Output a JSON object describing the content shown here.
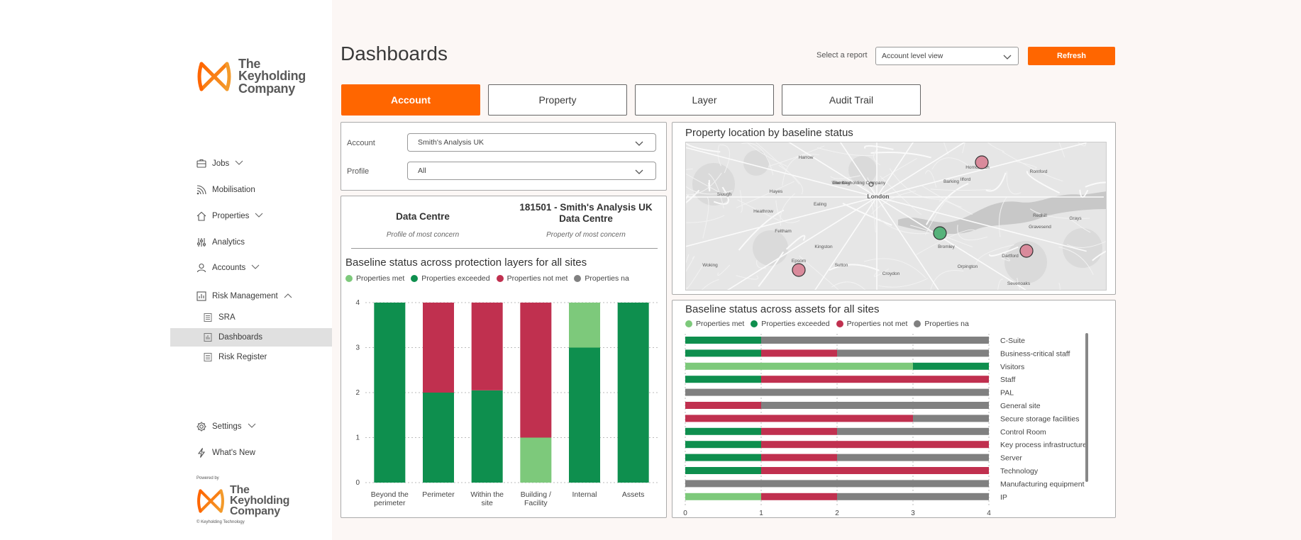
{
  "brand": {
    "name_line1": "The",
    "name_line2": "Keyholding",
    "name_line3": "Company",
    "powered_by": "Powered by",
    "copyright": "© Keyholding Technology",
    "accent": "#ff6600"
  },
  "sidebar": {
    "items": [
      {
        "label": "Jobs",
        "icon": "briefcase-icon",
        "chevron": true
      },
      {
        "label": "Mobilisation",
        "icon": "signal-icon",
        "chevron": false
      },
      {
        "label": "Properties",
        "icon": "home-icon",
        "chevron": true
      },
      {
        "label": "Analytics",
        "icon": "sliders-icon",
        "chevron": false
      },
      {
        "label": "Accounts",
        "icon": "user-icon",
        "chevron": true
      },
      {
        "label": "Risk Management",
        "icon": "chart-icon",
        "chevron": true
      }
    ],
    "sub_items": [
      {
        "label": "SRA",
        "active": false
      },
      {
        "label": "Dashboards",
        "active": true
      },
      {
        "label": "Risk Register",
        "active": false
      }
    ],
    "bottom_items": [
      {
        "label": "Settings",
        "icon": "gear-icon",
        "chevron": true
      },
      {
        "label": "What's New",
        "icon": "bolt-icon",
        "chevron": false
      }
    ]
  },
  "header": {
    "title": "Dashboards",
    "report_label": "Select a report",
    "report_value": "Account level view",
    "refresh_label": "Refresh"
  },
  "tabs": [
    {
      "label": "Account",
      "active": true
    },
    {
      "label": "Property",
      "active": false
    },
    {
      "label": "Layer",
      "active": false
    },
    {
      "label": "Audit Trail",
      "active": false
    }
  ],
  "filters": {
    "account_label": "Account",
    "account_value": "Smith's Analysis UK",
    "profile_label": "Profile",
    "profile_value": "All"
  },
  "summary": {
    "profile_title": "Data Centre",
    "profile_sub": "Profile of most concern",
    "property_title_line1": "181501 - Smith's Analysis UK",
    "property_title_line2": "Data Centre",
    "property_sub": "Property of most concern"
  },
  "legend": [
    {
      "label": "Properties met",
      "color": "#7dc97b"
    },
    {
      "label": "Properties exceeded",
      "color": "#0e8f4e"
    },
    {
      "label": "Properties not met",
      "color": "#c0304f"
    },
    {
      "label": "Properties na",
      "color": "#808080"
    }
  ],
  "map": {
    "title": "Property location by baseline status",
    "places": [
      "Harrow",
      "Wembley",
      "Slough",
      "London",
      "Hayes",
      "Feltham",
      "Kingston",
      "Croydon",
      "Bromley",
      "Dartford",
      "Orpington",
      "Sevenoaks",
      "Romford",
      "Ilford",
      "Barking",
      "Gravesend",
      "Redhill",
      "Hornchurch",
      "Grays",
      "The Keyholding Company",
      "Ealing",
      "Heathrow",
      "Sutton",
      "Epsom",
      "Woking"
    ],
    "markers": [
      {
        "status": "Properties not met",
        "color": "#d98a9b"
      },
      {
        "status": "Properties exceeded",
        "color": "#56b27a"
      },
      {
        "status": "Properties not met",
        "color": "#d98a9b"
      },
      {
        "status": "Properties not met",
        "color": "#d98a9b"
      }
    ]
  },
  "chart_data": [
    {
      "type": "bar",
      "stacked": true,
      "orientation": "vertical",
      "title": "Baseline status across protection layers for all sites",
      "categories": [
        "Beyond the perimeter",
        "Perimeter",
        "Within the site",
        "Building / Facility",
        "Internal",
        "Assets"
      ],
      "series": [
        {
          "name": "Properties met",
          "color": "#7dc97b",
          "values": [
            0,
            0,
            0,
            1,
            1,
            0
          ]
        },
        {
          "name": "Properties exceeded",
          "color": "#0e8f4e",
          "values": [
            4,
            2,
            2.05,
            0,
            3,
            4
          ]
        },
        {
          "name": "Properties not met",
          "color": "#c0304f",
          "values": [
            0,
            2,
            1.95,
            3,
            0,
            0
          ]
        },
        {
          "name": "Properties na",
          "color": "#808080",
          "values": [
            0,
            0,
            0,
            0,
            0,
            0
          ]
        }
      ],
      "ylim": [
        0,
        4
      ],
      "yticks": [
        0,
        1,
        2,
        3,
        4
      ],
      "grid": true,
      "legend": "top-left"
    },
    {
      "type": "bar",
      "stacked": true,
      "orientation": "horizontal",
      "title": "Baseline status across assets for all sites",
      "categories": [
        "C-Suite",
        "Business-critical staff",
        "Visitors",
        "Staff",
        "PAL",
        "General site",
        "Secure storage facilities",
        "Control Room",
        "Key process infrastructure",
        "Server",
        "Technology",
        "Manufacturing equipment",
        "IP"
      ],
      "series": [
        {
          "name": "Properties met",
          "color": "#7dc97b",
          "values": [
            0,
            0,
            3,
            0,
            0,
            0,
            0,
            0,
            0,
            0,
            0,
            0,
            1
          ]
        },
        {
          "name": "Properties exceeded",
          "color": "#0e8f4e",
          "values": [
            1,
            1,
            1,
            1,
            0,
            0,
            0,
            1,
            1,
            1,
            1,
            0,
            0
          ]
        },
        {
          "name": "Properties not met",
          "color": "#c0304f",
          "values": [
            0,
            1,
            0,
            3,
            0,
            1,
            3,
            1,
            3,
            1,
            3,
            0,
            1
          ]
        },
        {
          "name": "Properties na",
          "color": "#808080",
          "values": [
            3,
            2,
            0,
            0,
            4,
            3,
            1,
            2,
            0,
            2,
            0,
            4,
            2
          ]
        }
      ],
      "xlim": [
        0,
        4
      ],
      "xticks": [
        0,
        1,
        2,
        3,
        4
      ],
      "grid": true,
      "legend": "top-left"
    }
  ]
}
